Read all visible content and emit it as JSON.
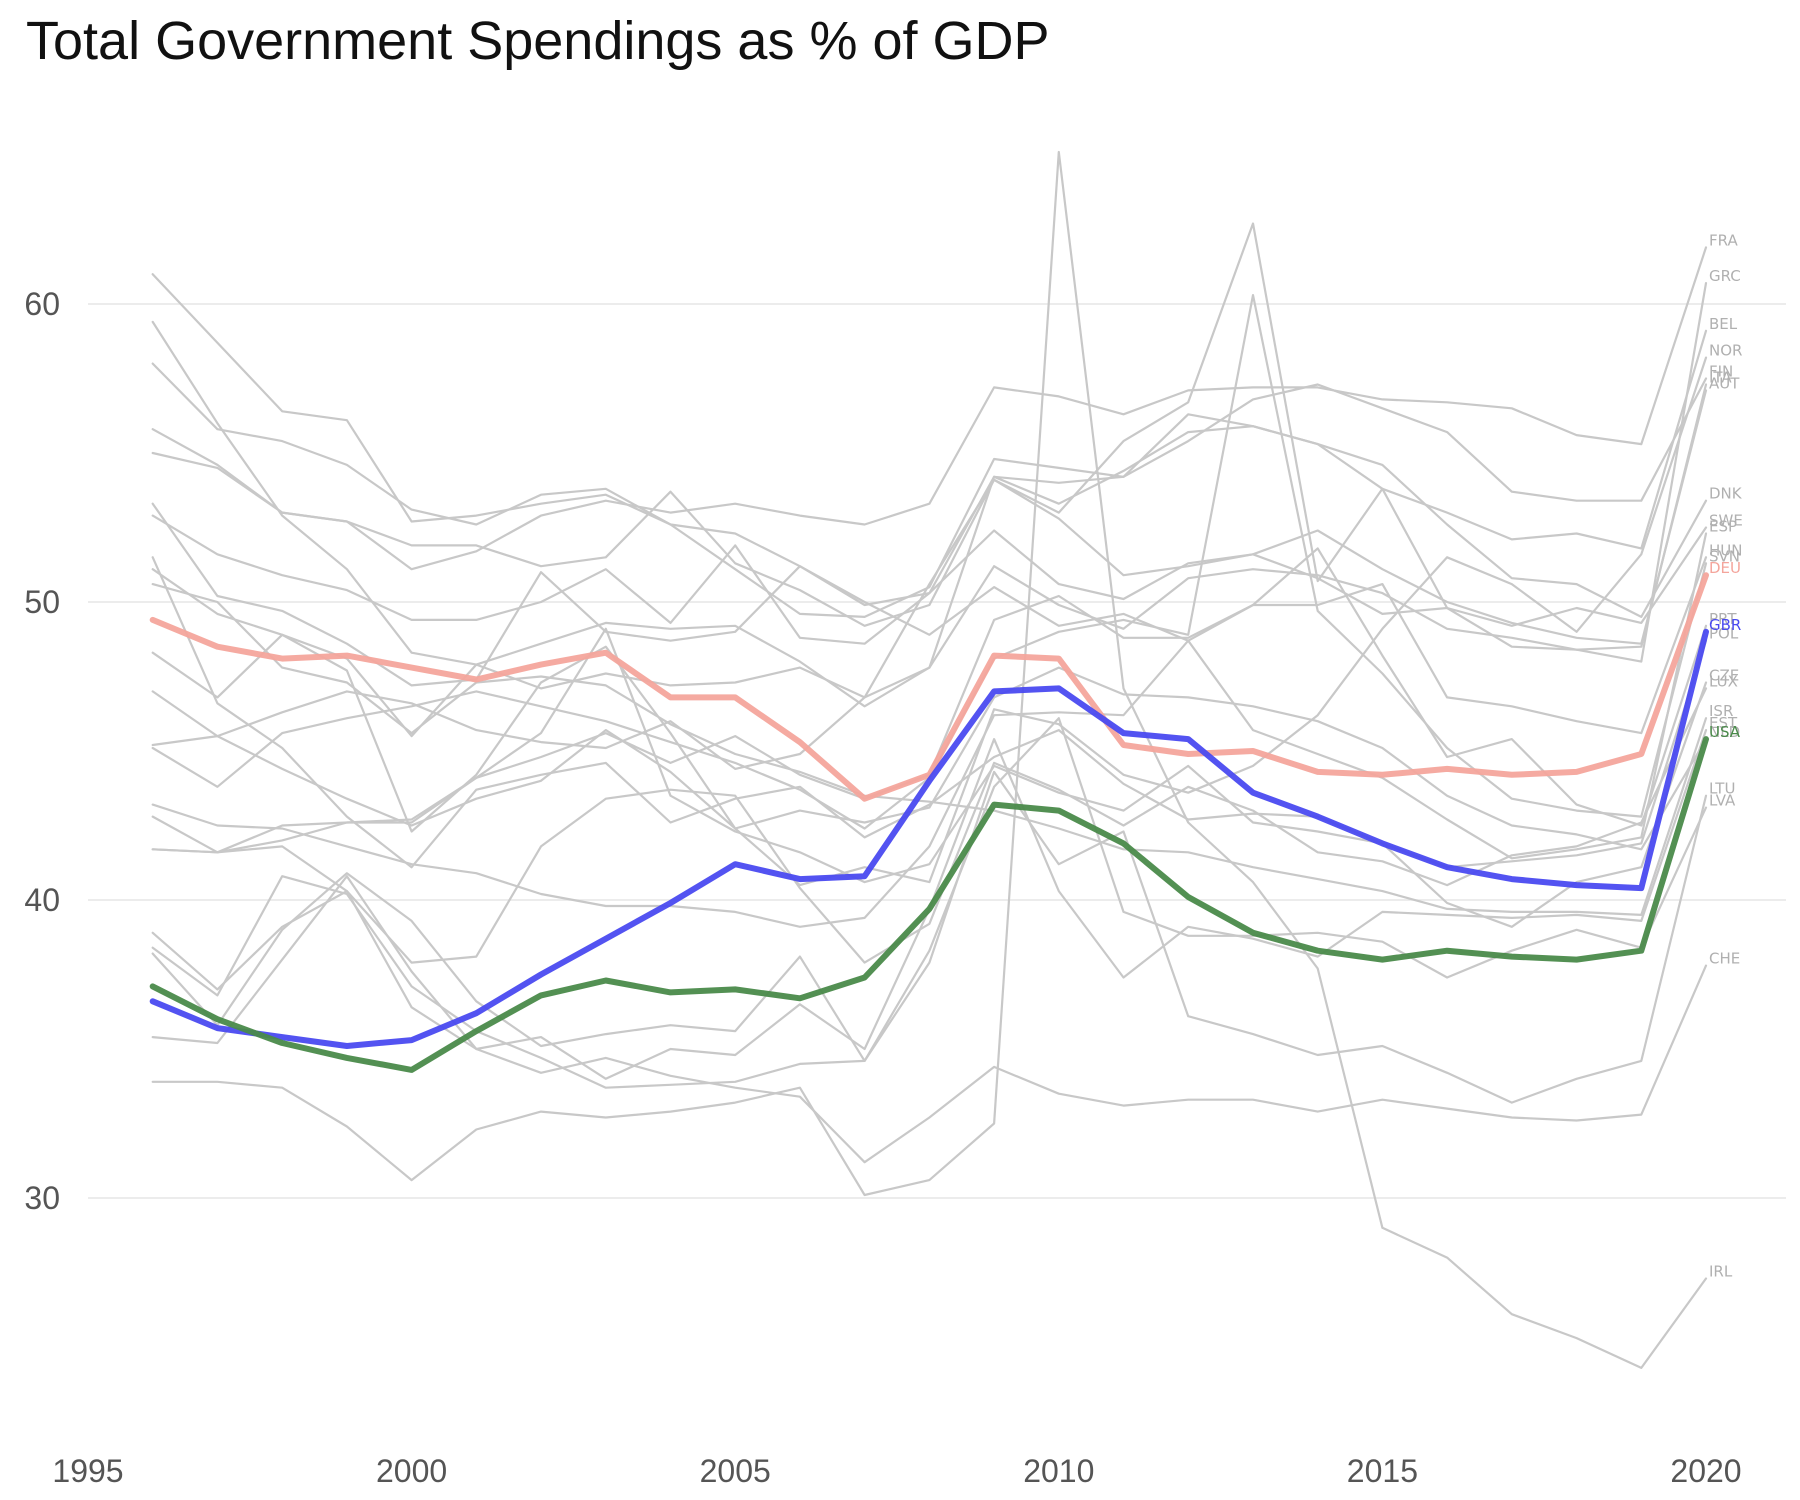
{
  "chart_data": {
    "type": "line",
    "title": "Total Government Spendings as % of GDP",
    "xlabel": "",
    "ylabel": "",
    "xlim": [
      1995,
      2020
    ],
    "ylim": [
      23,
      65
    ],
    "x_ticks": [
      1995,
      2000,
      2005,
      2010,
      2015,
      2020
    ],
    "y_ticks": [
      30,
      40,
      50,
      60
    ],
    "grid": "horizontal",
    "legend": "none",
    "x": [
      1996,
      1997,
      1998,
      1999,
      2000,
      2001,
      2002,
      2003,
      2004,
      2005,
      2006,
      2007,
      2008,
      2009,
      2010,
      2011,
      2012,
      2013,
      2014,
      2015,
      2016,
      2017,
      2018,
      2019,
      2020
    ],
    "highlight_colors": {
      "DEU": "#f4a59c",
      "GBR": "#4a4af0",
      "USA": "#4a8a4a",
      "other": "#c8c8c8"
    },
    "series": [
      {
        "name": "FRA",
        "highlight": false,
        "values": [
          55.0,
          54.5,
          53.0,
          52.7,
          51.1,
          51.7,
          52.9,
          53.4,
          53.0,
          53.3,
          52.9,
          52.6,
          53.3,
          57.2,
          56.9,
          56.3,
          57.1,
          57.2,
          57.2,
          56.8,
          56.7,
          56.5,
          55.6,
          55.3,
          61.9
        ]
      },
      {
        "name": "GRC",
        "highlight": false,
        "values": [
          45.2,
          45.5,
          46.3,
          47.0,
          46.6,
          45.7,
          45.3,
          45.1,
          46.0,
          44.4,
          44.9,
          46.8,
          50.6,
          54.1,
          53.0,
          55.4,
          56.7,
          62.7,
          50.7,
          53.8,
          49.8,
          48.5,
          48.4,
          48.0,
          60.7
        ]
      },
      {
        "name": "BEL",
        "highlight": false,
        "values": [
          52.9,
          51.6,
          50.9,
          50.4,
          49.4,
          49.4,
          50.0,
          51.1,
          49.3,
          51.9,
          48.8,
          48.6,
          50.3,
          54.2,
          53.3,
          54.4,
          55.7,
          55.9,
          55.3,
          53.8,
          53.0,
          52.1,
          52.3,
          51.8,
          59.1
        ]
      },
      {
        "name": "NOR",
        "highlight": false,
        "values": [
          48.3,
          46.8,
          48.9,
          47.7,
          42.3,
          44.2,
          47.3,
          48.5,
          45.6,
          42.4,
          40.5,
          41.1,
          40.6,
          46.4,
          45.9,
          44.2,
          43.6,
          44.5,
          46.2,
          49.1,
          51.5,
          50.6,
          49.0,
          51.6,
          58.2
        ]
      },
      {
        "name": "FIN",
        "highlight": false,
        "values": [
          59.4,
          56.0,
          52.9,
          51.1,
          48.3,
          47.9,
          48.6,
          49.3,
          49.1,
          49.2,
          48.0,
          46.5,
          47.8,
          54.2,
          54.0,
          54.2,
          55.4,
          56.8,
          57.3,
          56.5,
          55.7,
          53.7,
          53.4,
          53.4,
          57.5
        ]
      },
      {
        "name": "ITA",
        "highlight": false,
        "values": [
          51.1,
          49.6,
          48.9,
          48.1,
          45.5,
          47.9,
          47.1,
          47.6,
          47.2,
          47.3,
          47.8,
          46.8,
          47.8,
          51.2,
          49.9,
          49.1,
          50.8,
          51.1,
          50.9,
          50.3,
          49.1,
          48.8,
          48.4,
          48.5,
          57.3
        ]
      },
      {
        "name": "AUT",
        "highlight": false,
        "values": [
          55.8,
          54.6,
          53.0,
          52.7,
          51.9,
          51.9,
          51.2,
          51.5,
          53.7,
          51.3,
          50.4,
          49.2,
          49.9,
          54.1,
          52.8,
          50.9,
          51.2,
          51.6,
          52.4,
          51.1,
          50.0,
          49.3,
          48.8,
          48.6,
          57.1
        ]
      },
      {
        "name": "DNK",
        "highlight": false,
        "values": [
          58.0,
          55.8,
          55.4,
          54.6,
          53.1,
          52.6,
          53.6,
          53.8,
          52.6,
          51.1,
          49.6,
          49.5,
          50.5,
          54.8,
          54.5,
          54.2,
          56.3,
          55.9,
          55.3,
          54.6,
          52.6,
          50.8,
          50.6,
          49.5,
          53.4
        ]
      },
      {
        "name": "SWE",
        "highlight": false,
        "values": [
          61.0,
          58.7,
          56.4,
          56.1,
          52.7,
          52.9,
          53.3,
          53.6,
          52.6,
          52.3,
          51.2,
          49.9,
          50.3,
          52.4,
          50.6,
          50.1,
          51.3,
          51.6,
          50.8,
          49.6,
          49.8,
          49.2,
          49.8,
          49.3,
          52.5
        ]
      },
      {
        "name": "PRT",
        "highlight": false,
        "values": [
          41.7,
          41.6,
          42.0,
          42.6,
          42.7,
          44.1,
          44.8,
          45.6,
          44.6,
          45.5,
          44.2,
          43.4,
          44.2,
          49.4,
          50.2,
          48.8,
          48.8,
          49.9,
          51.8,
          48.2,
          44.8,
          45.4,
          43.2,
          42.5,
          49.2
        ]
      },
      {
        "name": "ESP",
        "highlight": false,
        "values": [
          43.2,
          42.5,
          42.4,
          41.8,
          41.2,
          40.9,
          40.2,
          39.8,
          39.8,
          39.6,
          39.1,
          39.4,
          41.8,
          46.2,
          46.3,
          46.2,
          48.7,
          45.7,
          44.9,
          44.1,
          42.7,
          41.4,
          41.7,
          42.1,
          52.3
        ]
      },
      {
        "name": "HUN",
        "highlight": false,
        "values": [
          53.3,
          50.2,
          49.7,
          48.6,
          47.2,
          47.4,
          51.0,
          49.0,
          48.7,
          49.0,
          51.2,
          50.0,
          48.9,
          50.5,
          49.2,
          49.6,
          48.7,
          49.9,
          49.9,
          50.6,
          46.8,
          46.5,
          46.0,
          45.6,
          51.5
        ]
      },
      {
        "name": "SVN",
        "highlight": false,
        "values": [
          45.1,
          43.8,
          45.6,
          46.1,
          46.5,
          47.0,
          46.5,
          46.0,
          45.3,
          44.6,
          43.7,
          42.4,
          44.1,
          48.1,
          49.0,
          49.4,
          48.9,
          60.3,
          49.7,
          47.6,
          45.1,
          43.4,
          43.0,
          42.8,
          51.3
        ]
      },
      {
        "name": "POL",
        "highlight": false,
        "values": [
          51.5,
          46.6,
          45.1,
          42.8,
          41.1,
          43.7,
          44.2,
          44.6,
          42.6,
          43.4,
          43.8,
          42.1,
          43.2,
          44.8,
          45.7,
          43.9,
          42.7,
          42.9,
          42.8,
          41.9,
          41.1,
          41.3,
          41.5,
          41.9,
          48.7
        ]
      },
      {
        "name": "CZE",
        "highlight": false,
        "values": [
          42.8,
          41.6,
          42.5,
          42.6,
          42.6,
          44.1,
          45.6,
          49.1,
          43.5,
          42.3,
          41.6,
          40.6,
          41.2,
          44.5,
          43.6,
          43.0,
          44.5,
          42.6,
          42.3,
          41.9,
          39.9,
          39.1,
          40.6,
          41.1,
          47.3
        ]
      },
      {
        "name": "LUX",
        "highlight": false,
        "values": [
          41.7,
          41.6,
          41.8,
          40.3,
          37.9,
          38.1,
          41.8,
          43.4,
          43.7,
          43.5,
          40.4,
          37.9,
          39.2,
          44.6,
          43.7,
          42.5,
          43.8,
          43.0,
          41.6,
          41.3,
          40.5,
          41.5,
          41.8,
          42.6,
          47.1
        ]
      },
      {
        "name": "ISR",
        "highlight": false,
        "values": [
          50.6,
          50.0,
          47.8,
          47.3,
          45.6,
          47.3,
          47.5,
          47.2,
          45.9,
          44.9,
          44.3,
          43.5,
          43.3,
          43.0,
          42.4,
          41.7,
          41.6,
          41.1,
          40.7,
          40.3,
          39.7,
          39.6,
          39.6,
          39.5,
          46.1
        ]
      },
      {
        "name": "EST",
        "highlight": false,
        "values": [
          38.9,
          37.0,
          39.1,
          40.3,
          36.4,
          35.0,
          35.4,
          34.0,
          35.0,
          34.8,
          36.5,
          35.0,
          39.7,
          45.4,
          40.3,
          37.4,
          39.1,
          38.7,
          38.1,
          39.6,
          39.5,
          39.4,
          39.5,
          39.3,
          45.7
        ]
      },
      {
        "name": "NLD",
        "highlight": false,
        "values": [
          47.0,
          45.5,
          44.4,
          43.4,
          42.5,
          43.4,
          44.0,
          45.7,
          44.3,
          42.4,
          43.0,
          42.6,
          43.1,
          46.8,
          47.8,
          46.9,
          46.8,
          46.5,
          46.0,
          45.1,
          43.5,
          42.5,
          42.2,
          41.7,
          45.4
        ]
      },
      {
        "name": "LTU",
        "highlight": false,
        "values": [
          38.4,
          36.8,
          40.8,
          40.2,
          37.1,
          35.6,
          34.7,
          33.7,
          33.8,
          33.9,
          34.5,
          34.6,
          37.9,
          44.3,
          41.2,
          42.3,
          36.1,
          35.5,
          34.8,
          35.1,
          34.2,
          33.2,
          34.0,
          34.6,
          43.5
        ]
      },
      {
        "name": "LVA",
        "highlight": false,
        "values": [
          38.2,
          35.8,
          39.0,
          40.9,
          39.3,
          36.6,
          35.1,
          35.5,
          35.8,
          35.6,
          38.1,
          34.6,
          38.3,
          43.8,
          46.1,
          39.6,
          38.8,
          38.8,
          38.9,
          38.6,
          37.4,
          38.3,
          39.0,
          38.4,
          43.1
        ]
      },
      {
        "name": "CHE",
        "highlight": false,
        "values": [
          35.4,
          35.2,
          38.0,
          40.8,
          37.6,
          35.0,
          34.2,
          34.7,
          34.1,
          33.7,
          33.4,
          31.2,
          32.7,
          34.4,
          33.5,
          33.1,
          33.3,
          33.3,
          32.9,
          33.3,
          33.0,
          32.7,
          32.6,
          32.8,
          37.8
        ]
      },
      {
        "name": "IRL",
        "highlight": false,
        "values": [
          33.9,
          33.9,
          33.7,
          32.4,
          30.6,
          32.3,
          32.9,
          32.7,
          32.9,
          33.2,
          33.7,
          30.1,
          30.6,
          32.5,
          65.1,
          47.1,
          42.6,
          40.6,
          37.7,
          29.0,
          28.0,
          26.1,
          25.3,
          24.3,
          27.3
        ]
      },
      {
        "name": "DEU",
        "highlight": true,
        "values": [
          49.4,
          48.5,
          48.1,
          48.2,
          47.8,
          47.4,
          47.9,
          48.3,
          46.8,
          46.8,
          45.3,
          43.4,
          44.2,
          48.2,
          48.1,
          45.2,
          44.9,
          45.0,
          44.3,
          44.2,
          44.4,
          44.2,
          44.3,
          44.9,
          50.9
        ]
      },
      {
        "name": "GBR",
        "highlight": true,
        "values": [
          36.6,
          35.7,
          35.4,
          35.1,
          35.3,
          36.2,
          37.5,
          38.7,
          39.9,
          41.2,
          40.7,
          40.8,
          44.0,
          47.0,
          47.1,
          45.6,
          45.4,
          43.6,
          42.8,
          41.9,
          41.1,
          40.7,
          40.5,
          40.4,
          49.0
        ]
      },
      {
        "name": "USA",
        "highlight": true,
        "values": [
          37.1,
          36.0,
          35.2,
          34.7,
          34.3,
          35.6,
          36.8,
          37.3,
          36.9,
          37.0,
          36.7,
          37.4,
          39.7,
          43.2,
          43.0,
          41.9,
          40.1,
          38.9,
          38.3,
          38.0,
          38.3,
          38.1,
          38.0,
          38.3,
          45.4
        ]
      }
    ]
  }
}
